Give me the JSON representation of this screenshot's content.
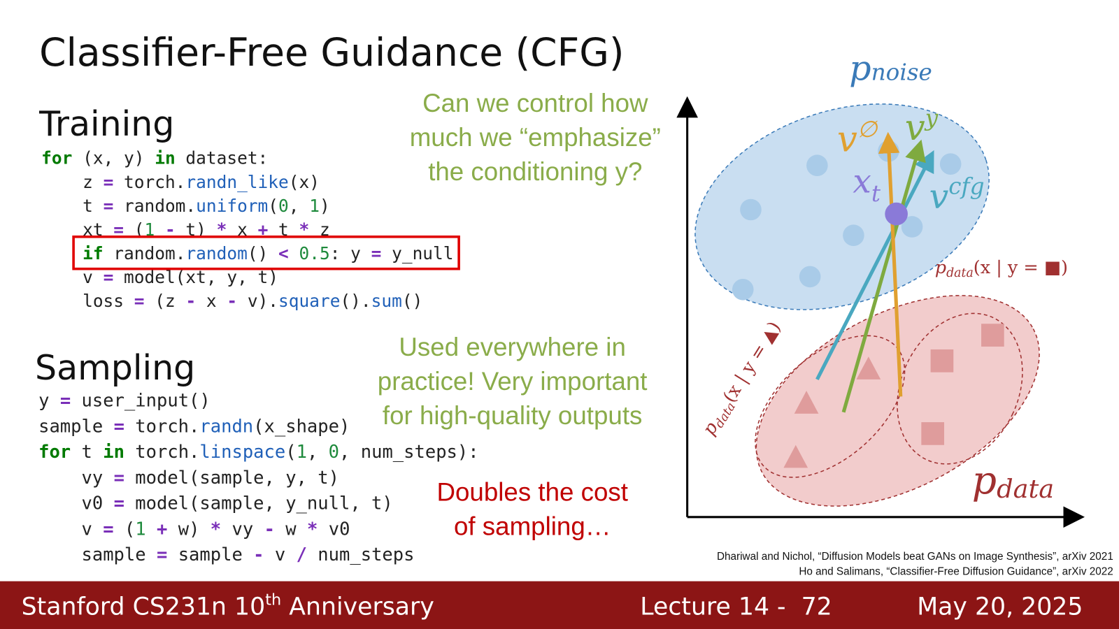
{
  "title": "Classifier-Free Guidance (CFG)",
  "training": {
    "heading": "Training",
    "code": [
      "for (x, y) in dataset:",
      "    z = torch.randn_like(x)",
      "    t = random.uniform(0, 1)",
      "    xt = (1 - t) * x + t * z",
      "    if random.random() < 0.5: y = y_null",
      "    v = model(xt, y, t)",
      "    loss = (z - x - v).square().sum()"
    ]
  },
  "sampling": {
    "heading": "Sampling",
    "code": [
      "y = user_input()",
      "sample = torch.randn(x_shape)",
      "for t in torch.linspace(1, 0, num_steps):",
      "    vy = model(sample, y, t)",
      "    v0 = model(sample, y_null, t)",
      "    v = (1 + w) * vy - w * v0",
      "    sample = sample - v / num_steps"
    ]
  },
  "callouts": {
    "control": [
      "Can we control how",
      "much we “emphasize”",
      "the conditioning y?"
    ],
    "practice": [
      "Used everywhere in",
      "practice! Very important",
      "for high-quality outputs"
    ],
    "cost": [
      "Doubles the cost",
      "of sampling…"
    ]
  },
  "diagram": {
    "p_noise": {
      "base": "p",
      "sub": "noise"
    },
    "v_null": {
      "base": "v",
      "sup": "∅"
    },
    "v_y": {
      "base": "v",
      "sup": "y"
    },
    "x_t": {
      "base": "x",
      "sub": "t"
    },
    "v_cfg": {
      "base": "v",
      "sup": "cfg"
    },
    "p_data_square": {
      "base": "p",
      "sub": "data",
      "arg": "(x | y = ■)"
    },
    "p_data_triangle": {
      "base": "p",
      "sub": "data",
      "arg": "(x | y = ▲)"
    },
    "p_data": {
      "base": "p",
      "sub": "data"
    }
  },
  "citations": [
    "Dhariwal and Nichol, “Diffusion Models beat GANs on Image Synthesis”, arXiv 2021",
    "Ho and Salimans, “Classifier-Free Diffusion Guidance”, arXiv 2022"
  ],
  "footer": {
    "course": {
      "text": "Stanford CS231n 10",
      "sup": "th",
      "rest": " Anniversary"
    },
    "lecture": "Lecture 14 -  72",
    "date": "May 20, 2025"
  }
}
